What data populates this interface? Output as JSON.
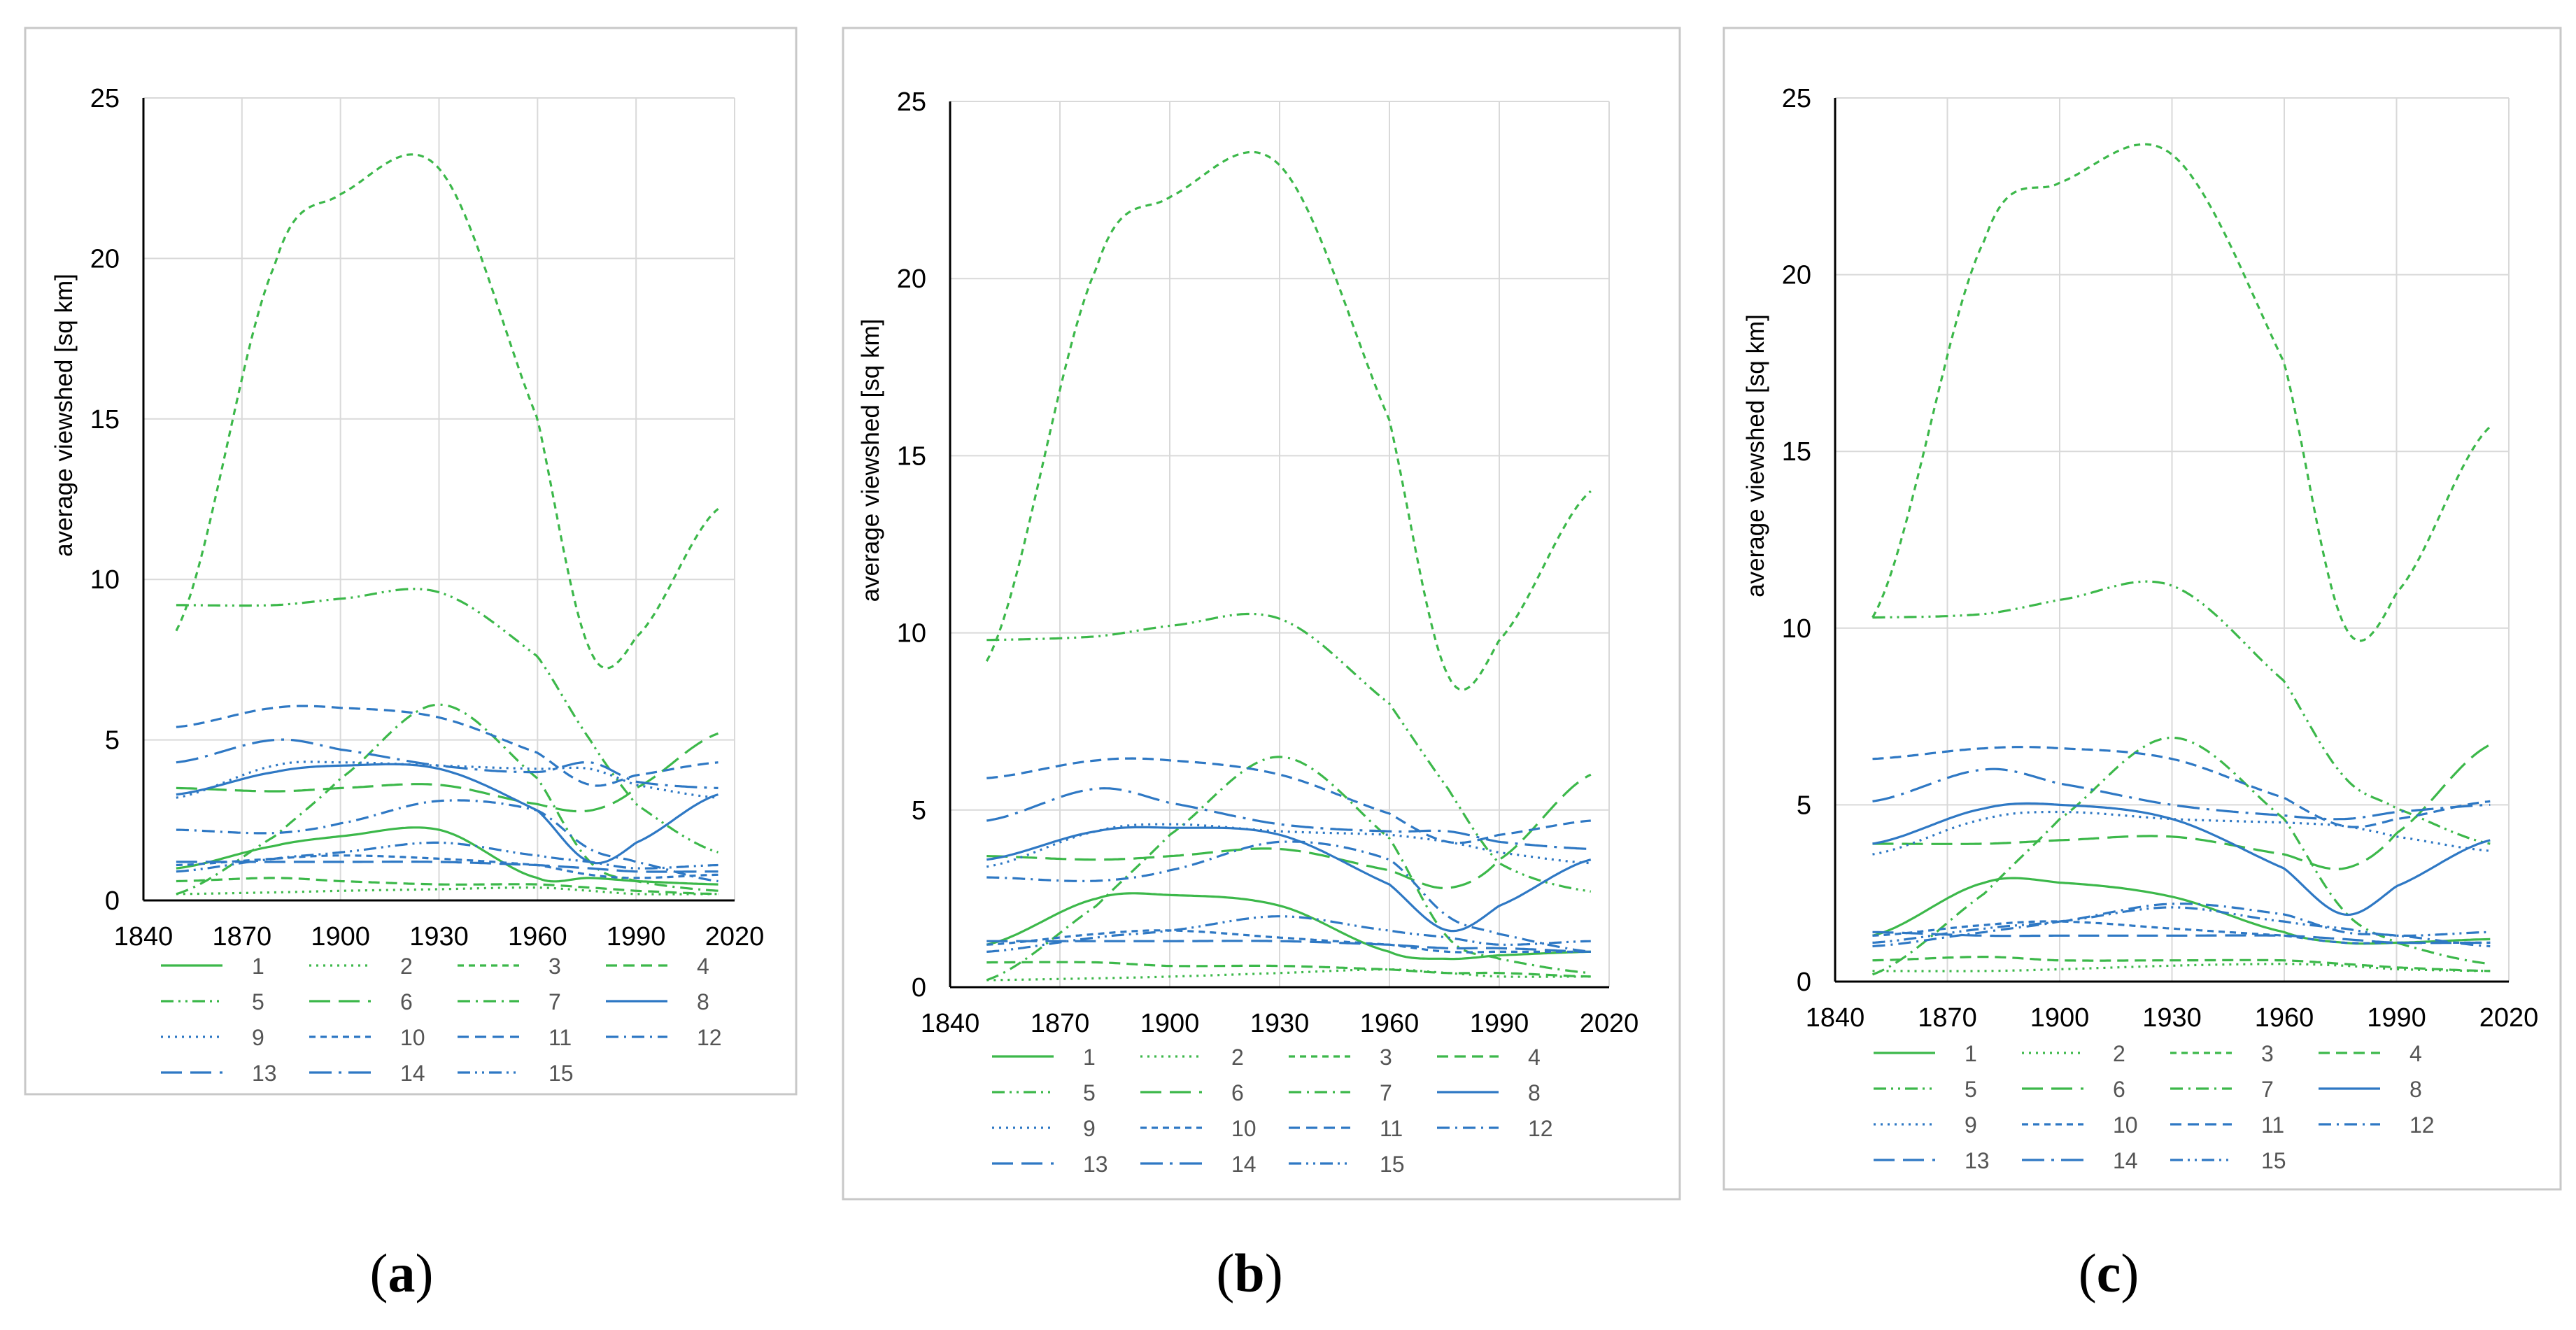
{
  "figure": {
    "panels": [
      {
        "caption_open": "(",
        "caption_letter": "a",
        "caption_close": ")"
      },
      {
        "caption_open": "(",
        "caption_letter": "b",
        "caption_close": ")"
      },
      {
        "caption_open": "(",
        "caption_letter": "c",
        "caption_close": ")"
      }
    ]
  },
  "colors": {
    "green": "#3cb84a",
    "blue": "#2e78c4",
    "axis": "#000000",
    "grid": "#d9d9d9",
    "frame": "#c8c8c8"
  },
  "chart_data": [
    {
      "type": "line",
      "ylabel": "average viewshed  [sq km]",
      "xlim": [
        1840,
        2020
      ],
      "ylim": [
        0,
        25
      ],
      "xticks": [
        1840,
        1870,
        1900,
        1930,
        1960,
        1990,
        2020
      ],
      "yticks": [
        0,
        5,
        10,
        15,
        20,
        25
      ],
      "x": [
        1850,
        1880,
        1900,
        1930,
        1960,
        1976,
        1990,
        2015
      ],
      "series": [
        {
          "name": "1",
          "color": "green",
          "dash": "solid",
          "values": [
            1.0,
            1.7,
            2.0,
            2.2,
            0.7,
            0.7,
            0.6,
            0.5
          ]
        },
        {
          "name": "2",
          "color": "green",
          "dash": "dot",
          "values": [
            0.2,
            0.25,
            0.3,
            0.35,
            0.4,
            0.3,
            0.2,
            0.2
          ]
        },
        {
          "name": "3",
          "color": "green",
          "dash": "shortdash",
          "values": [
            8.4,
            19.8,
            22.0,
            22.8,
            15.0,
            7.8,
            8.2,
            12.2
          ]
        },
        {
          "name": "4",
          "color": "green",
          "dash": "dash",
          "values": [
            0.6,
            0.7,
            0.6,
            0.5,
            0.5,
            0.4,
            0.3,
            0.2
          ]
        },
        {
          "name": "5",
          "color": "green",
          "dash": "dashdotdot",
          "values": [
            9.2,
            9.2,
            9.4,
            9.6,
            7.6,
            5.0,
            3.0,
            1.5
          ]
        },
        {
          "name": "6",
          "color": "green",
          "dash": "longdash",
          "values": [
            3.5,
            3.4,
            3.5,
            3.6,
            3.0,
            2.8,
            3.5,
            5.2
          ]
        },
        {
          "name": "7",
          "color": "green",
          "dash": "dashdot",
          "values": [
            0.2,
            2.0,
            3.8,
            6.1,
            3.8,
            1.2,
            0.6,
            0.3
          ]
        },
        {
          "name": "8",
          "color": "blue",
          "dash": "solid",
          "values": [
            3.3,
            4.0,
            4.2,
            4.1,
            2.8,
            1.2,
            1.8,
            3.3
          ]
        },
        {
          "name": "9",
          "color": "blue",
          "dash": "dot",
          "values": [
            3.2,
            4.2,
            4.3,
            4.2,
            4.1,
            4.1,
            3.6,
            3.2
          ]
        },
        {
          "name": "10",
          "color": "blue",
          "dash": "shortdash",
          "values": [
            1.1,
            1.3,
            1.4,
            1.3,
            1.1,
            0.8,
            0.7,
            0.8
          ]
        },
        {
          "name": "11",
          "color": "blue",
          "dash": "dash",
          "values": [
            5.4,
            6.0,
            6.0,
            5.7,
            4.6,
            3.6,
            3.9,
            4.3
          ]
        },
        {
          "name": "12",
          "color": "blue",
          "dash": "dashdot",
          "values": [
            2.2,
            2.1,
            2.4,
            3.1,
            2.8,
            1.6,
            1.2,
            0.6
          ]
        },
        {
          "name": "13",
          "color": "blue",
          "dash": "longdash",
          "values": [
            1.2,
            1.2,
            1.2,
            1.2,
            1.1,
            1.0,
            0.9,
            0.9
          ]
        },
        {
          "name": "14",
          "color": "blue",
          "dash": "longdashdot",
          "values": [
            4.3,
            5.0,
            4.7,
            4.2,
            4.0,
            4.3,
            3.7,
            3.5
          ]
        },
        {
          "name": "15",
          "color": "blue",
          "dash": "dashdotdot",
          "values": [
            0.9,
            1.3,
            1.5,
            1.8,
            1.4,
            1.2,
            1.0,
            1.1
          ]
        }
      ]
    },
    {
      "type": "line",
      "ylabel": "average viewshed  [sq km]",
      "xlim": [
        1840,
        2020
      ],
      "ylim": [
        0,
        25
      ],
      "xticks": [
        1840,
        1870,
        1900,
        1930,
        1960,
        1990,
        2020
      ],
      "yticks": [
        0,
        5,
        10,
        15,
        20,
        25
      ],
      "x": [
        1850,
        1880,
        1900,
        1930,
        1960,
        1976,
        1990,
        2015
      ],
      "series": [
        {
          "name": "1",
          "color": "green",
          "dash": "solid",
          "values": [
            1.2,
            2.5,
            2.6,
            2.3,
            1.0,
            0.8,
            0.9,
            1.0
          ]
        },
        {
          "name": "2",
          "color": "green",
          "dash": "dot",
          "values": [
            0.2,
            0.25,
            0.3,
            0.4,
            0.5,
            0.4,
            0.3,
            0.3
          ]
        },
        {
          "name": "3",
          "color": "green",
          "dash": "shortdash",
          "values": [
            9.2,
            20.3,
            22.3,
            23.2,
            16.0,
            8.8,
            9.8,
            14.0
          ]
        },
        {
          "name": "4",
          "color": "green",
          "dash": "dash",
          "values": [
            0.7,
            0.7,
            0.6,
            0.6,
            0.5,
            0.4,
            0.4,
            0.3
          ]
        },
        {
          "name": "5",
          "color": "green",
          "dash": "dashdotdot",
          "values": [
            9.8,
            9.9,
            10.2,
            10.4,
            8.0,
            5.6,
            3.5,
            2.7
          ]
        },
        {
          "name": "6",
          "color": "green",
          "dash": "longdash",
          "values": [
            3.7,
            3.6,
            3.7,
            3.9,
            3.3,
            2.8,
            3.6,
            6.0
          ]
        },
        {
          "name": "7",
          "color": "green",
          "dash": "dashdot",
          "values": [
            0.2,
            2.3,
            4.3,
            6.5,
            4.2,
            1.4,
            0.8,
            0.4
          ]
        },
        {
          "name": "8",
          "color": "blue",
          "dash": "solid",
          "values": [
            3.6,
            4.4,
            4.5,
            4.3,
            2.9,
            1.6,
            2.3,
            3.6
          ]
        },
        {
          "name": "9",
          "color": "blue",
          "dash": "dot",
          "values": [
            3.4,
            4.4,
            4.6,
            4.4,
            4.3,
            4.1,
            3.8,
            3.5
          ]
        },
        {
          "name": "10",
          "color": "blue",
          "dash": "shortdash",
          "values": [
            1.2,
            1.5,
            1.6,
            1.4,
            1.2,
            1.0,
            1.0,
            1.0
          ]
        },
        {
          "name": "11",
          "color": "blue",
          "dash": "dash",
          "values": [
            5.9,
            6.4,
            6.4,
            6.0,
            4.9,
            4.1,
            4.3,
            4.7
          ]
        },
        {
          "name": "12",
          "color": "blue",
          "dash": "dashdot",
          "values": [
            3.1,
            3.0,
            3.3,
            4.1,
            3.6,
            2.0,
            1.5,
            1.0
          ]
        },
        {
          "name": "13",
          "color": "blue",
          "dash": "longdash",
          "values": [
            1.3,
            1.3,
            1.3,
            1.3,
            1.2,
            1.1,
            1.1,
            1.0
          ]
        },
        {
          "name": "14",
          "color": "blue",
          "dash": "longdashdot",
          "values": [
            4.7,
            5.6,
            5.2,
            4.6,
            4.4,
            4.4,
            4.1,
            3.9
          ]
        },
        {
          "name": "15",
          "color": "blue",
          "dash": "dashdotdot",
          "values": [
            1.0,
            1.4,
            1.6,
            2.0,
            1.6,
            1.4,
            1.2,
            1.3
          ]
        }
      ]
    },
    {
      "type": "line",
      "ylabel": "average viewshed  [sq km]",
      "xlim": [
        1840,
        2020
      ],
      "ylim": [
        0,
        25
      ],
      "xticks": [
        1840,
        1870,
        1900,
        1930,
        1960,
        1990,
        2020
      ],
      "yticks": [
        0,
        5,
        10,
        15,
        20,
        25
      ],
      "x": [
        1850,
        1880,
        1900,
        1930,
        1960,
        1976,
        1990,
        2015
      ],
      "series": [
        {
          "name": "1",
          "color": "green",
          "dash": "solid",
          "values": [
            1.3,
            2.8,
            2.8,
            2.4,
            1.4,
            1.1,
            1.1,
            1.2
          ]
        },
        {
          "name": "2",
          "color": "green",
          "dash": "dot",
          "values": [
            0.3,
            0.3,
            0.35,
            0.45,
            0.5,
            0.45,
            0.35,
            0.3
          ]
        },
        {
          "name": "3",
          "color": "green",
          "dash": "shortdash",
          "values": [
            10.3,
            21.0,
            22.6,
            23.4,
            17.5,
            10.1,
            11.0,
            15.7
          ]
        },
        {
          "name": "4",
          "color": "green",
          "dash": "dash",
          "values": [
            0.6,
            0.7,
            0.6,
            0.6,
            0.6,
            0.5,
            0.4,
            0.3
          ]
        },
        {
          "name": "5",
          "color": "green",
          "dash": "dashdotdot",
          "values": [
            10.3,
            10.4,
            10.8,
            11.2,
            8.5,
            5.8,
            4.9,
            3.9
          ]
        },
        {
          "name": "6",
          "color": "green",
          "dash": "longdash",
          "values": [
            3.9,
            3.9,
            4.0,
            4.1,
            3.6,
            3.2,
            4.2,
            6.7
          ]
        },
        {
          "name": "7",
          "color": "green",
          "dash": "dashdot",
          "values": [
            0.2,
            2.5,
            4.6,
            6.9,
            4.6,
            2.0,
            1.1,
            0.5
          ]
        },
        {
          "name": "8",
          "color": "blue",
          "dash": "solid",
          "values": [
            3.9,
            4.9,
            5.0,
            4.6,
            3.2,
            1.9,
            2.7,
            4.0
          ]
        },
        {
          "name": "9",
          "color": "blue",
          "dash": "dot",
          "values": [
            3.6,
            4.6,
            4.8,
            4.6,
            4.5,
            4.4,
            4.1,
            3.7
          ]
        },
        {
          "name": "10",
          "color": "blue",
          "dash": "shortdash",
          "values": [
            1.3,
            1.6,
            1.7,
            1.5,
            1.3,
            1.1,
            1.1,
            1.1
          ]
        },
        {
          "name": "11",
          "color": "blue",
          "dash": "dash",
          "values": [
            6.3,
            6.6,
            6.6,
            6.3,
            5.2,
            4.4,
            4.6,
            5.1
          ]
        },
        {
          "name": "12",
          "color": "blue",
          "dash": "dashdot",
          "values": [
            1.0,
            1.4,
            1.7,
            2.2,
            1.9,
            1.4,
            1.3,
            1.0
          ]
        },
        {
          "name": "13",
          "color": "blue",
          "dash": "longdash",
          "values": [
            1.4,
            1.3,
            1.3,
            1.3,
            1.3,
            1.2,
            1.1,
            1.1
          ]
        },
        {
          "name": "14",
          "color": "blue",
          "dash": "longdashdot",
          "values": [
            5.1,
            6.0,
            5.6,
            5.0,
            4.7,
            4.6,
            4.8,
            5.0
          ]
        },
        {
          "name": "15",
          "color": "blue",
          "dash": "dashdotdot",
          "values": [
            1.1,
            1.5,
            1.7,
            2.1,
            1.7,
            1.5,
            1.3,
            1.4
          ]
        }
      ]
    }
  ]
}
